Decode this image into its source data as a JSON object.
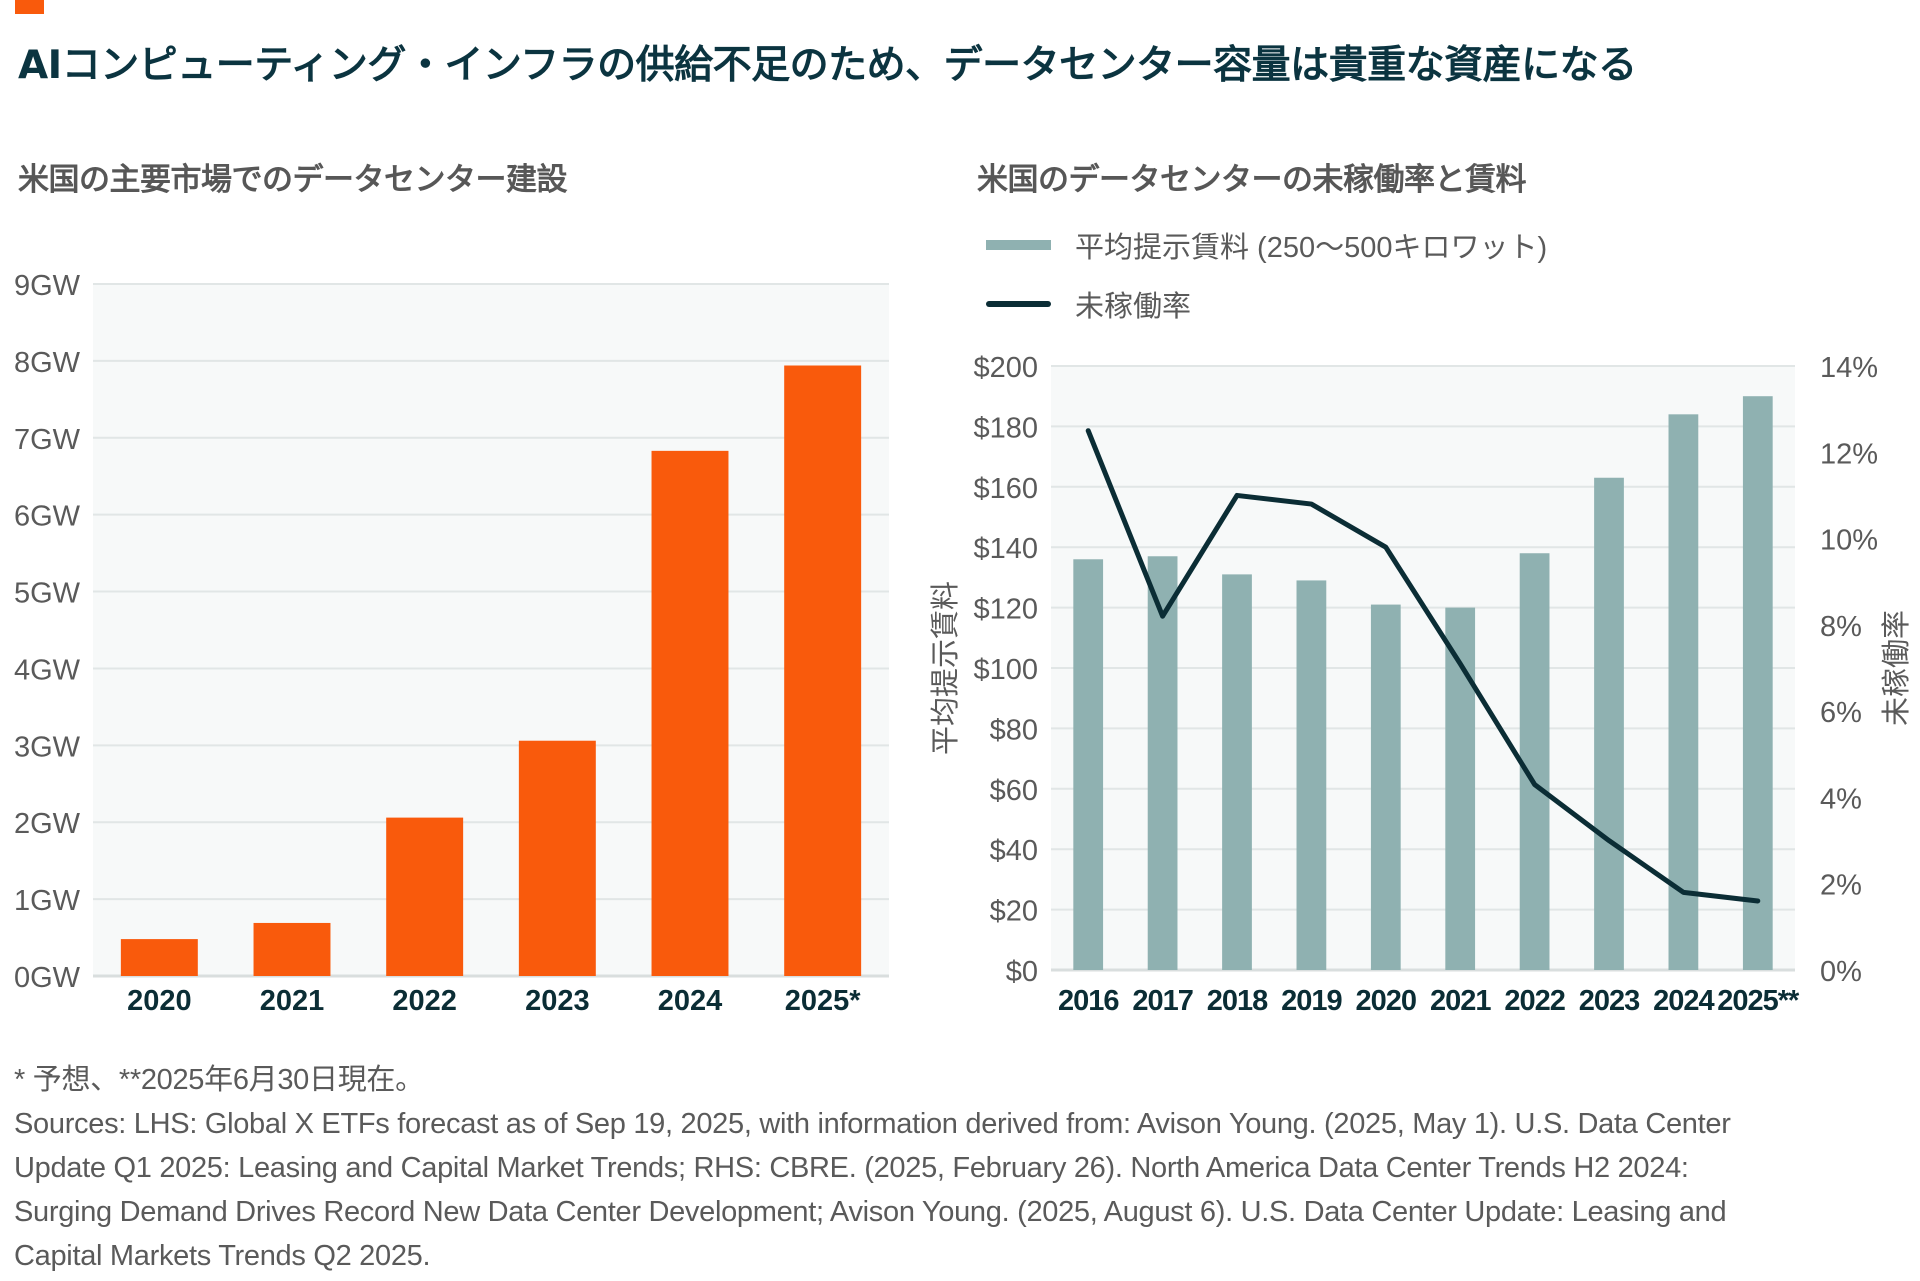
{
  "header": {
    "title": "AIコンピューティング・インフラの供給不足のため、データセンター容量は貴重な資産になる",
    "accent_color": "#F95A0C"
  },
  "chart_data": [
    {
      "type": "bar",
      "title": "米国の主要市場でのデータセンター建設",
      "categories": [
        "2020",
        "2021",
        "2022",
        "2023",
        "2024",
        "2025*"
      ],
      "values": [
        0.48,
        0.69,
        2.06,
        3.06,
        6.83,
        7.94
      ],
      "unit": "GW",
      "xlabel": "",
      "ylabel": "",
      "ylim": [
        0,
        9
      ],
      "yticks": [
        "0GW",
        "1GW",
        "2GW",
        "3GW",
        "4GW",
        "5GW",
        "6GW",
        "7GW",
        "8GW",
        "9GW"
      ],
      "grid": true,
      "bar_color": "#F95A0C"
    },
    {
      "type": "bar+line",
      "title": "米国のデータセンターの未稼働率と賃料",
      "categories": [
        "2016",
        "2017",
        "2018",
        "2019",
        "2020",
        "2021",
        "2022",
        "2023",
        "2024",
        "2025**"
      ],
      "series": [
        {
          "name": "平均提示賃料 (250～500キロワット)",
          "type": "bar",
          "axis": "left",
          "values": [
            136,
            137,
            131,
            129,
            121,
            120,
            138,
            163,
            184,
            190
          ],
          "color": "#8FB1B1"
        },
        {
          "name": "未稼働率",
          "type": "line",
          "axis": "right",
          "values": [
            12.5,
            8.2,
            11.0,
            10.8,
            9.8,
            7.1,
            4.3,
            3.0,
            1.8,
            1.6
          ],
          "color": "#0B2D35"
        }
      ],
      "ylabel_left": "平均提示賃料",
      "ylabel_right": "未稼働率",
      "ylim_left": [
        0,
        200
      ],
      "ylim_right": [
        0,
        14
      ],
      "yticks_left": [
        "$0",
        "$20",
        "$40",
        "$60",
        "$80",
        "$100",
        "$120",
        "$140",
        "$160",
        "$180",
        "$200"
      ],
      "yticks_right": [
        "0%",
        "2%",
        "4%",
        "6%",
        "8%",
        "10%",
        "12%",
        "14%"
      ],
      "legend_position": "top-left",
      "grid": true
    }
  ],
  "legend": [
    {
      "label": "平均提示賃料 (250～500キロワット)",
      "color": "#8FB1B1"
    },
    {
      "label": "未稼働率",
      "color": "#0B2D35"
    }
  ],
  "footnotes": {
    "note": "* 予想、**2025年6月30日現在。",
    "sources": [
      "Sources: LHS: Global X ETFs forecast as of Sep 19, 2025, with information derived from: Avison Young. (2025, May 1). U.S. Data Center",
      "Update Q1 2025: Leasing and Capital Market Trends; RHS: CBRE. (2025, February 26). North America Data Center Trends H2 2024:",
      "Surging Demand Drives Record New Data Center Development; Avison Young. (2025, August 6). U.S. Data Center Update: Leasing and",
      "Capital Markets Trends Q2 2025."
    ]
  }
}
